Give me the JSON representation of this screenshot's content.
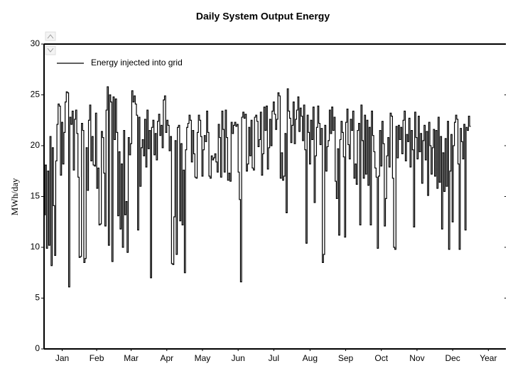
{
  "chart_data": {
    "type": "step",
    "title": "Daily System Output Energy",
    "ylabel": "MWh/day",
    "legend": "upper left",
    "series": [
      {
        "name": "Energy injected into grid",
        "color": "#000000",
        "values": [
          13.2,
          18.1,
          9.9,
          17.5,
          10.2,
          20.9,
          8.2,
          19.8,
          14.1,
          9.2,
          18.5,
          22.1,
          24.1,
          23.9,
          17.1,
          22.3,
          18.2,
          21.3,
          24.3,
          25.3,
          25.2,
          6.1,
          22.8,
          22.1,
          23.4,
          17.6,
          22.6,
          23.5,
          21.2,
          16.9,
          9.0,
          9.1,
          22.2,
          21.5,
          8.5,
          8.9,
          19.8,
          15.6,
          22.5,
          24.0,
          18.5,
          20.9,
          18.1,
          18.0,
          23.2,
          15.8,
          17.8,
          12.2,
          12.3,
          21.4,
          20.8,
          17.3,
          12.1,
          23.5,
          25.8,
          10.2,
          25.0,
          24.3,
          8.6,
          24.8,
          20.6,
          24.6,
          21.3,
          13.1,
          19.4,
          11.8,
          18.2,
          10.0,
          21.5,
          13.2,
          14.5,
          9.5,
          20.8,
          19.1,
          20.2,
          25.4,
          24.3,
          24.9,
          24.1,
          23.0,
          11.7,
          22.8,
          16.0,
          19.8,
          20.6,
          19.0,
          22.6,
          17.9,
          23.5,
          19.7,
          21.5,
          7.0,
          21.8,
          22.5,
          19.1,
          21.2,
          18.6,
          22.4,
          23.1,
          21.0,
          22.0,
          19.8,
          24.5,
          24.9,
          21.3,
          22.5,
          22.0,
          19.5,
          20.9,
          8.4,
          8.3,
          13.0,
          20.5,
          9.3,
          21.8,
          22.0,
          12.6,
          20.2,
          12.2,
          17.6,
          7.5,
          19.6,
          21.8,
          22.2,
          23.0,
          22.5,
          18.4,
          21.5,
          19.2,
          16.9,
          16.8,
          21.3,
          23.0,
          22.5,
          20.9,
          17.0,
          19.6,
          21.0,
          20.4,
          23.4,
          21.3,
          17.0,
          16.8,
          19.0,
          18.6,
          18.8,
          19.2,
          18.4,
          17.4,
          22.1,
          20.8,
          16.9,
          23.4,
          21.6,
          17.4,
          23.5,
          20.8,
          16.6,
          17.3,
          16.5,
          22.3,
          21.2,
          22.0,
          22.3,
          21.9,
          22.1,
          17.4,
          14.7,
          6.6,
          22.8,
          23.3,
          22.7,
          23.1,
          17.5,
          18.2,
          21.8,
          19.0,
          22.5,
          17.8,
          17.6,
          22.8,
          23.0,
          22.4,
          19.9,
          20.6,
          23.3,
          17.1,
          19.2,
          23.8,
          21.5,
          23.9,
          17.7,
          19.8,
          22.6,
          20.0,
          23.4,
          24.3,
          23.1,
          21.6,
          22.6,
          25.2,
          24.9,
          16.8,
          19.3,
          16.6,
          17.0,
          21.2,
          13.4,
          25.6,
          23.4,
          22.7,
          20.3,
          22.0,
          24.3,
          20.2,
          22.6,
          23.5,
          24.8,
          21.4,
          23.7,
          22.9,
          20.5,
          24.0,
          19.6,
          10.4,
          23.0,
          21.3,
          18.2,
          22.5,
          20.6,
          23.8,
          14.4,
          19.0,
          21.8,
          23.9,
          22.2,
          20.1,
          21.7,
          8.5,
          9.3,
          22.0,
          17.5,
          19.9,
          20.5,
          23.5,
          21.2,
          23.8,
          21.5,
          22.8,
          16.5,
          14.8,
          19.7,
          11.2,
          20.6,
          22.4,
          21.3,
          18.9,
          11.0,
          22.3,
          23.6,
          20.1,
          18.7,
          22.6,
          21.5,
          23.4,
          16.8,
          18.2,
          16.2,
          21.5,
          22.2,
          12.2,
          24.0,
          20.5,
          16.8,
          23.0,
          17.2,
          22.5,
          16.1,
          21.8,
          12.2,
          23.4,
          21.0,
          19.4,
          17.8,
          16.9,
          9.9,
          17.0,
          21.5,
          18.0,
          22.4,
          20.2,
          12.1,
          14.8,
          19.0,
          20.8,
          17.9,
          23.2,
          22.9,
          16.8,
          10.0,
          9.8,
          21.9,
          18.8,
          22.0,
          20.6,
          21.8,
          19.2,
          22.5,
          23.4,
          18.5,
          21.1,
          20.4,
          22.7,
          17.9,
          21.5,
          19.6,
          12.0,
          23.3,
          20.8,
          18.7,
          22.9,
          19.4,
          21.2,
          16.3,
          20.5,
          22.0,
          18.6,
          21.4,
          15.1,
          22.3,
          20.0,
          17.2,
          19.8,
          21.6,
          17.0,
          21.5,
          15.8,
          22.8,
          16.4,
          20.9,
          11.8,
          19.3,
          15.5,
          20.7,
          16.0,
          22.4,
          9.8,
          17.5,
          21.1,
          12.5,
          20.0,
          22.3,
          23.0,
          22.6,
          18.2,
          9.8,
          21.7,
          20.4,
          18.7,
          22.1,
          11.7,
          21.8,
          21.5,
          22.9,
          21.9
        ]
      }
    ],
    "xlim": [
      0,
      395
    ],
    "xticks": [
      {
        "value": 15.5,
        "label": "Jan"
      },
      {
        "value": 45,
        "label": "Feb"
      },
      {
        "value": 74.5,
        "label": "Mar"
      },
      {
        "value": 105,
        "label": "Apr"
      },
      {
        "value": 135.5,
        "label": "May"
      },
      {
        "value": 166,
        "label": "Jun"
      },
      {
        "value": 196.5,
        "label": "Jul"
      },
      {
        "value": 227.5,
        "label": "Aug"
      },
      {
        "value": 258,
        "label": "Sep"
      },
      {
        "value": 288.5,
        "label": "Oct"
      },
      {
        "value": 319,
        "label": "Nov"
      },
      {
        "value": 349.5,
        "label": "Dec"
      },
      {
        "value": 380,
        "label": "Year"
      }
    ],
    "ylim": [
      0,
      30
    ],
    "yticks": [
      0,
      5,
      10,
      15,
      20,
      25,
      30
    ]
  }
}
